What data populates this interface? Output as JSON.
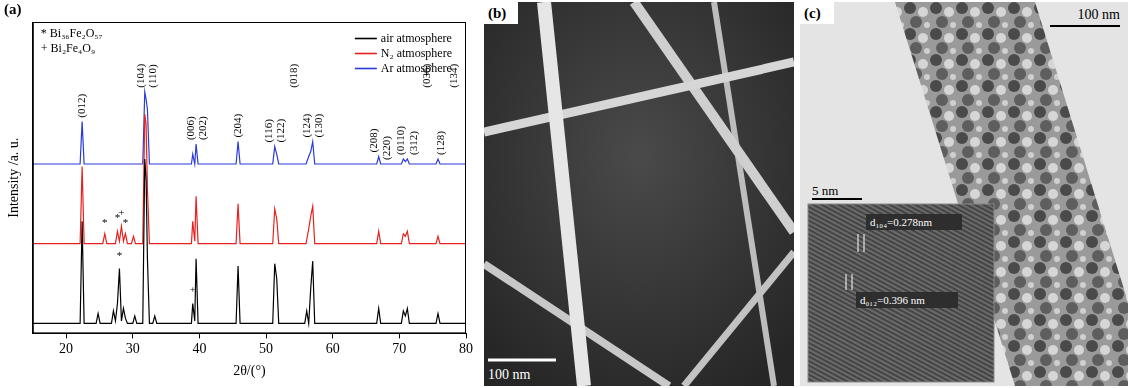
{
  "chart_data": {
    "type": "line",
    "letter": "(a)",
    "x_label": "2θ/(°)",
    "y_label": "Intensity /a. u.",
    "xlim": [
      15,
      80
    ],
    "xticks": [
      20,
      30,
      40,
      50,
      60,
      70,
      80
    ],
    "ylim": [
      0,
      125
    ],
    "tick_labels": "x",
    "grid": false,
    "legend": "top-right",
    "phase_key": [
      "* Bi₃₆Fe₂O₅₇",
      "+ Bi₂Fe₄O₉"
    ],
    "series": [
      {
        "name": "air atmosphere",
        "color": "#000000",
        "line_style": "solid",
        "x": [
          15,
          22.1,
          22.4,
          22.7,
          24.5,
          24.8,
          25.1,
          26.8,
          27.1,
          27.4,
          27.7,
          28.0,
          28.3,
          28.6,
          28.9,
          29.2,
          30.0,
          30.3,
          30.6,
          31.5,
          31.8,
          32.0,
          32.2,
          32.5,
          33.0,
          33.3,
          33.6,
          38.8,
          39.0,
          39.3,
          39.5,
          39.8,
          45.5,
          45.8,
          46.1,
          51.0,
          51.3,
          51.6,
          51.9,
          55.8,
          56.1,
          56.4,
          56.7,
          57.0,
          57.3,
          66.6,
          66.9,
          67.2,
          70.3,
          70.6,
          70.9,
          71.2,
          71.5,
          75.5,
          75.8,
          76.1,
          80
        ],
        "values": [
          4,
          4,
          45,
          4,
          4,
          8,
          4,
          4,
          9,
          5,
          12,
          26,
          5,
          10,
          6,
          4,
          4,
          7,
          4,
          4,
          70,
          62,
          30,
          4,
          4,
          7,
          4,
          4,
          12,
          5,
          30,
          4,
          4,
          27,
          4,
          4,
          28,
          22,
          4,
          4,
          9,
          4,
          18,
          29,
          4,
          4,
          10,
          4,
          4,
          9,
          7,
          10,
          4,
          4,
          8,
          4,
          4
        ]
      },
      {
        "name": "N₂ atmosphere",
        "color": "#e8211f",
        "line_style": "solid",
        "x": [
          15,
          22.1,
          22.4,
          22.7,
          25.5,
          25.8,
          26.1,
          27.4,
          27.7,
          28.0,
          28.3,
          28.6,
          28.9,
          29.2,
          29.8,
          30.1,
          30.4,
          31.5,
          31.8,
          32.0,
          32.2,
          32.5,
          38.8,
          39.0,
          39.3,
          39.5,
          39.8,
          45.5,
          45.8,
          46.1,
          51.0,
          51.3,
          51.6,
          51.9,
          56.0,
          56.4,
          56.7,
          57.0,
          57.3,
          66.6,
          66.9,
          67.2,
          70.3,
          70.6,
          70.9,
          71.2,
          71.5,
          75.5,
          75.8,
          76.1,
          80
        ],
        "values": [
          36,
          36,
          67,
          36,
          36,
          40,
          36,
          36,
          41,
          37,
          43,
          37,
          40,
          36,
          36,
          39,
          36,
          36,
          88,
          84,
          58,
          36,
          36,
          45,
          37,
          55,
          36,
          36,
          52,
          36,
          36,
          50,
          46,
          36,
          36,
          42,
          47,
          51,
          36,
          36,
          41,
          36,
          36,
          40,
          39,
          41,
          36,
          36,
          39,
          36,
          36
        ]
      },
      {
        "name": "Ar atmosphere",
        "color": "#2a3cd6",
        "line_style": "solid",
        "x": [
          15,
          22.1,
          22.4,
          22.7,
          31.5,
          31.8,
          32.0,
          32.2,
          32.5,
          38.8,
          39.0,
          39.3,
          39.5,
          39.8,
          45.5,
          45.8,
          46.1,
          51.0,
          51.3,
          51.6,
          51.9,
          56.0,
          56.4,
          56.7,
          57.0,
          57.3,
          66.6,
          66.9,
          67.2,
          70.3,
          70.6,
          70.9,
          71.2,
          71.5,
          75.5,
          75.8,
          76.1,
          80
        ],
        "values": [
          68,
          68,
          85,
          68,
          68,
          97,
          94,
          90,
          68,
          68,
          72,
          68,
          76,
          68,
          68,
          77,
          68,
          68,
          75,
          72,
          68,
          68,
          71,
          73,
          77,
          68,
          68,
          71,
          68,
          68,
          70,
          69,
          70,
          68,
          68,
          70,
          68,
          68
        ]
      }
    ],
    "peak_labels": [
      {
        "text": "(012)",
        "x": 22.4
      },
      {
        "text": "(104)",
        "x": 31.2
      },
      {
        "text": "(110)",
        "x": 33.0
      },
      {
        "text": "(006)",
        "x": 38.8
      },
      {
        "text": "(202)",
        "x": 40.6
      },
      {
        "text": "(204)",
        "x": 45.8
      },
      {
        "text": "(116)",
        "x": 50.4
      },
      {
        "text": "(122)",
        "x": 52.3
      },
      {
        "text": "(018)",
        "x": 54.2
      },
      {
        "text": "(124)",
        "x": 56.1
      },
      {
        "text": "(130)",
        "x": 58.0
      },
      {
        "text": "(208)",
        "x": 66.2
      },
      {
        "text": "(220)",
        "x": 68.2
      },
      {
        "text": "(0110)",
        "x": 70.2
      },
      {
        "text": "(312)",
        "x": 72.2
      },
      {
        "text": "(036)",
        "x": 74.2
      },
      {
        "text": "(128)",
        "x": 76.2
      },
      {
        "text": "(134)",
        "x": 78.2
      }
    ],
    "annotations": [
      {
        "text": "*",
        "x": 25.8,
        "y": 42
      },
      {
        "text": "*",
        "x": 27.7,
        "y": 44
      },
      {
        "text": "+",
        "x": 28.3,
        "y": 46
      },
      {
        "text": "*",
        "x": 28.9,
        "y": 42
      },
      {
        "text": "*",
        "x": 28.0,
        "y": 29
      },
      {
        "text": "+",
        "x": 39.0,
        "y": 15
      }
    ]
  },
  "images": {
    "b": {
      "letter": "(b)",
      "scale_bar": "100 nm"
    },
    "c": {
      "letter": "(c)",
      "scale_bar": "100 nm",
      "inset": {
        "scale_bar": "5 nm",
        "d_labels": [
          "d₁₀₄=0.278nm",
          "d₀₁₂=0.396 nm"
        ]
      }
    }
  }
}
